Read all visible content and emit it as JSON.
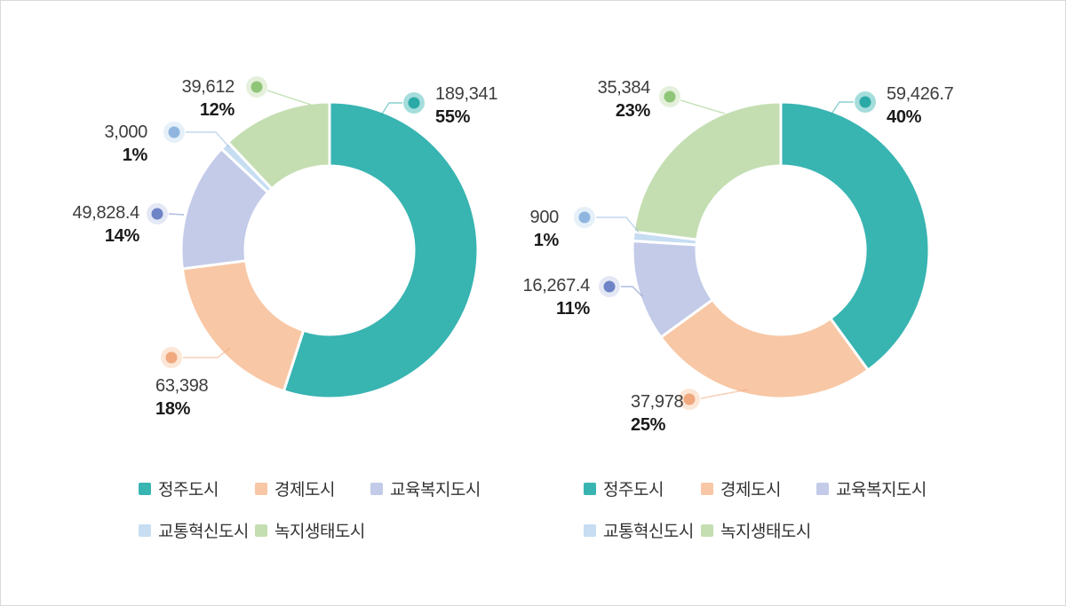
{
  "page": {
    "background": "#ffffff",
    "border_color": "#d9d9d9"
  },
  "palette": {
    "slices": [
      "#38b4b1",
      "#f8c7a5",
      "#c3cbe9",
      "#c6ddf2",
      "#c4deb2"
    ],
    "dots": [
      "#2aa9a6",
      "#f0a87e",
      "#6f83c7",
      "#90b6e0",
      "#8fc577"
    ]
  },
  "legend": {
    "labels": [
      "정주도시",
      "경제도시",
      "교육복지도시",
      "교통혁신도시",
      "녹지생태도시"
    ]
  },
  "chart_data": [
    {
      "type": "pie",
      "variant": "donut",
      "start_angle": 0,
      "direction": "clockwise",
      "labels": [
        "정주도시",
        "경제도시",
        "교육복지도시",
        "교통혁신도시",
        "녹지생태도시"
      ],
      "values": [
        189341,
        63398,
        49828.4,
        3000,
        39612
      ],
      "percents": [
        55,
        18,
        14,
        1,
        12
      ],
      "value_labels": [
        "189,341",
        "63,398",
        "49,828.4",
        "3,000",
        "39,612"
      ],
      "percent_labels": [
        "55%",
        "18%",
        "14%",
        "1%",
        "12%"
      ],
      "colors": [
        "#38b4b1",
        "#f8c7a5",
        "#c3cbe9",
        "#c6ddf2",
        "#c4deb2"
      ],
      "legend_position": "bottom"
    },
    {
      "type": "pie",
      "variant": "donut",
      "start_angle": 0,
      "direction": "clockwise",
      "labels": [
        "정주도시",
        "경제도시",
        "교육복지도시",
        "교통혁신도시",
        "녹지생태도시"
      ],
      "values": [
        59426.7,
        37978,
        16267.4,
        900,
        35384
      ],
      "percents": [
        40,
        25,
        11,
        1,
        23
      ],
      "value_labels": [
        "59,426.7",
        "37,978",
        "16,267.4",
        "900",
        "35,384"
      ],
      "percent_labels": [
        "40%",
        "25%",
        "11%",
        "1%",
        "23%"
      ],
      "colors": [
        "#38b4b1",
        "#f8c7a5",
        "#c3cbe9",
        "#c6ddf2",
        "#c4deb2"
      ],
      "legend_position": "bottom"
    }
  ]
}
